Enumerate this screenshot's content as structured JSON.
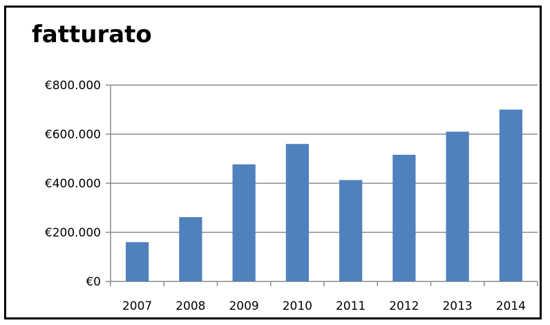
{
  "chart_data": {
    "type": "bar",
    "title": "fatturato",
    "xlabel": "",
    "ylabel": "",
    "categories": [
      "2007",
      "2008",
      "2009",
      "2010",
      "2011",
      "2012",
      "2013",
      "2014"
    ],
    "values": [
      160000,
      262000,
      477000,
      560000,
      413000,
      516000,
      610000,
      700000
    ],
    "ylim": [
      0,
      800000
    ],
    "yticks": [
      0,
      200000,
      400000,
      600000,
      800000
    ],
    "ytick_labels": [
      "€0",
      "€200.000",
      "€400.000",
      "€600.000",
      "€800.000"
    ],
    "grid": true,
    "legend": "none",
    "bar_color": "#4F81BD",
    "grid_color": "#8C8C8C"
  }
}
